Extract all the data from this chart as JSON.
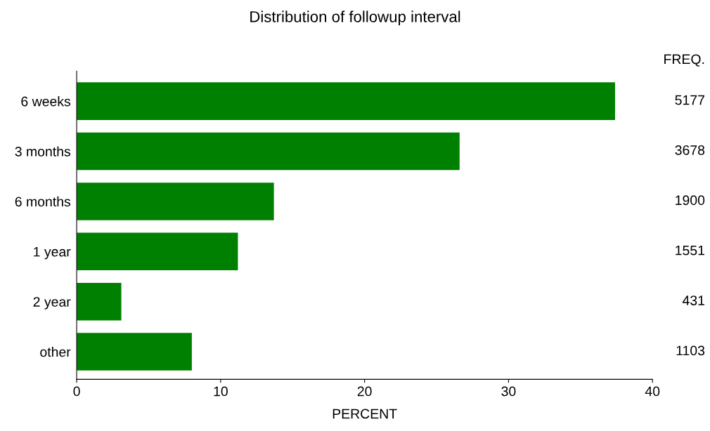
{
  "chart_data": {
    "type": "bar",
    "orientation": "horizontal",
    "title": "Distribution of followup interval",
    "xlabel": "PERCENT",
    "categories": [
      "6 weeks",
      "3 months",
      "6 months",
      "1 year",
      "2 year",
      "other"
    ],
    "values": [
      37.4,
      26.6,
      13.7,
      11.2,
      3.1,
      8.0
    ],
    "color": "#008000",
    "annotations": [
      "FREQ.",
      "5177",
      "3678",
      "1900",
      "1551",
      "431",
      "1103"
    ],
    "xlim": [
      0,
      40
    ],
    "xticks": [
      0,
      10,
      20,
      30,
      40
    ],
    "grid": false,
    "legend": false
  }
}
